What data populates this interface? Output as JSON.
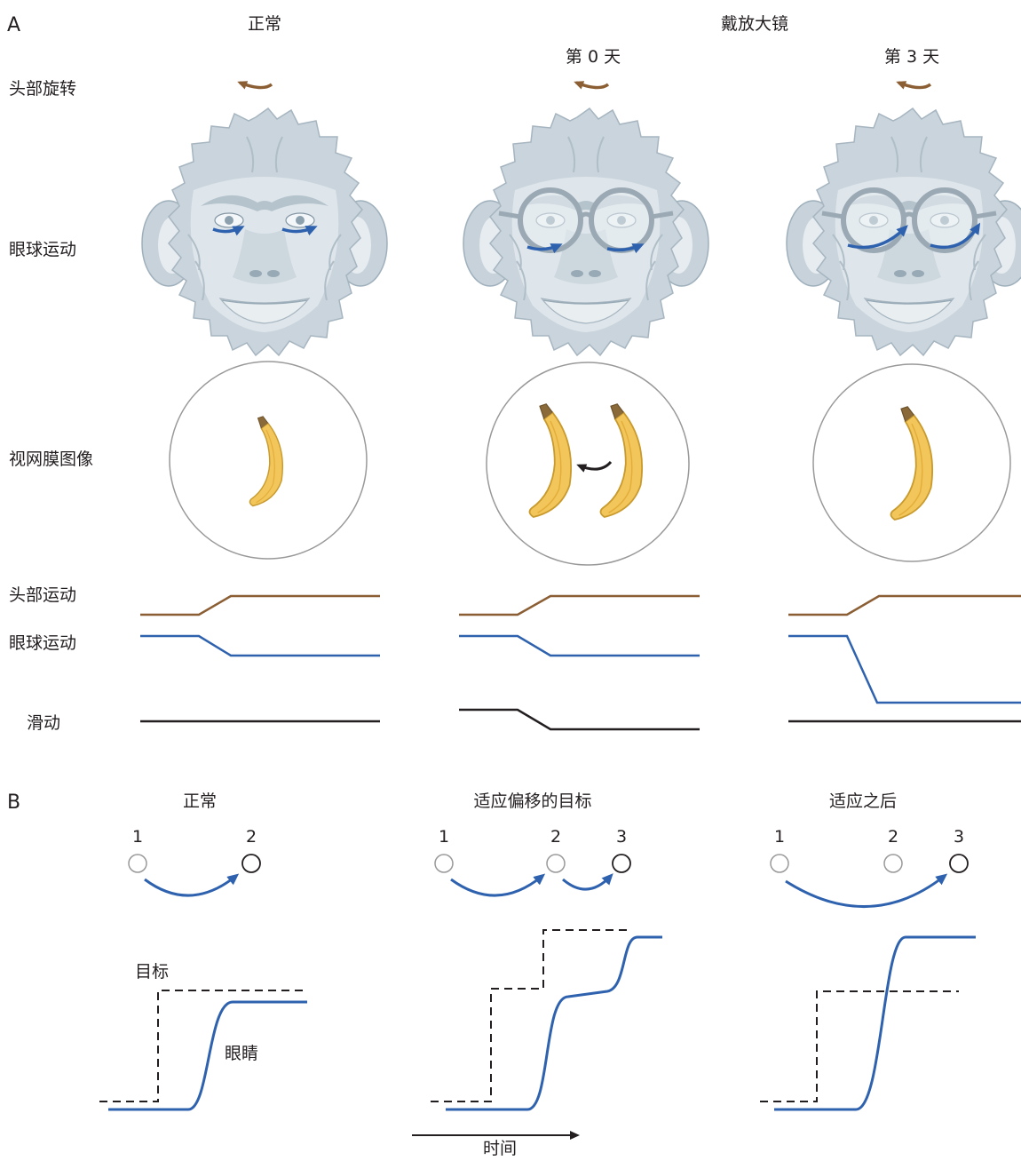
{
  "panel_a": {
    "letter": "A",
    "col_normal": "正常",
    "col_magnify": "戴放大镜",
    "day0": "第 0 天",
    "day3": "第 3 天",
    "row_head_rotation": "头部旋转",
    "row_eye_movement": "眼球运动",
    "row_retinal_image": "视网膜图像",
    "trace_head": "头部运动",
    "trace_eye": "眼球运动",
    "trace_slip": "滑动"
  },
  "panel_b": {
    "letter": "B",
    "col_normal": "正常",
    "col_shift": "适应偏移的目标",
    "col_after": "适应之后",
    "target_label": "目标",
    "eye_label": "眼睛",
    "time_label": "时间",
    "positions": {
      "normal": [
        "1",
        "2"
      ],
      "shift": [
        "1",
        "2",
        "3"
      ],
      "after": [
        "1",
        "2",
        "3"
      ]
    }
  },
  "colors": {
    "head_trace": "#8b5e34",
    "eye_trace": "#2f62ae",
    "slip_trace": "#231f20",
    "face": "#c9d4dc",
    "banana": "#f2c65a"
  }
}
